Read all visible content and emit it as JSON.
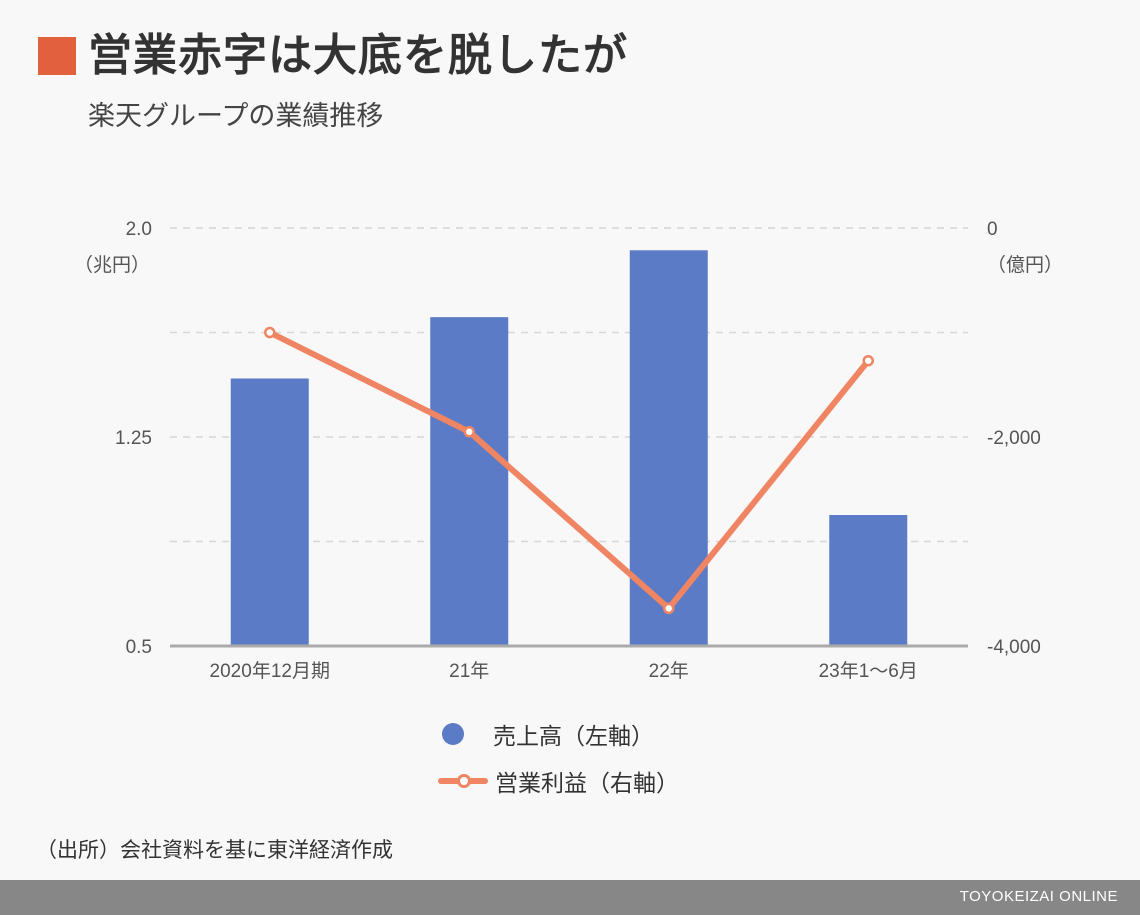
{
  "title": "営業赤字は大底を脱したが",
  "subtitle": "楽天グループの業績推移",
  "source": "（出所）会社資料を基に東洋経済作成",
  "brand": "TOYOKEIZAI ONLINE",
  "colors": {
    "title_mark": "#e2603d",
    "bar": "#5b7bc6",
    "line": "#ef8562",
    "footer": "#878787"
  },
  "chart_data": {
    "type": "bar",
    "categories": [
      "2020年12月期",
      "21年",
      "22年",
      "23年1〜6月"
    ],
    "series": [
      {
        "name": "売上高（左軸）",
        "type": "bar",
        "axis": "left",
        "values": [
          1.46,
          1.68,
          1.92,
          0.97
        ]
      },
      {
        "name": "営業利益（右軸）",
        "type": "line",
        "axis": "right",
        "values": [
          -1000,
          -1950,
          -3640,
          -1270
        ]
      }
    ],
    "left_axis": {
      "unit": "（兆円）",
      "range": [
        0.5,
        2.0
      ],
      "ticks": [
        "2.0",
        "1.25",
        "0.5"
      ],
      "tick_values": [
        2.0,
        1.25,
        0.5
      ]
    },
    "right_axis": {
      "unit": "（億円）",
      "range": [
        -4000,
        0
      ],
      "ticks": [
        "0",
        "-2,000",
        "-4,000"
      ],
      "tick_values": [
        0,
        -2000,
        -4000
      ]
    },
    "grid": true,
    "legend_position": "bottom"
  }
}
